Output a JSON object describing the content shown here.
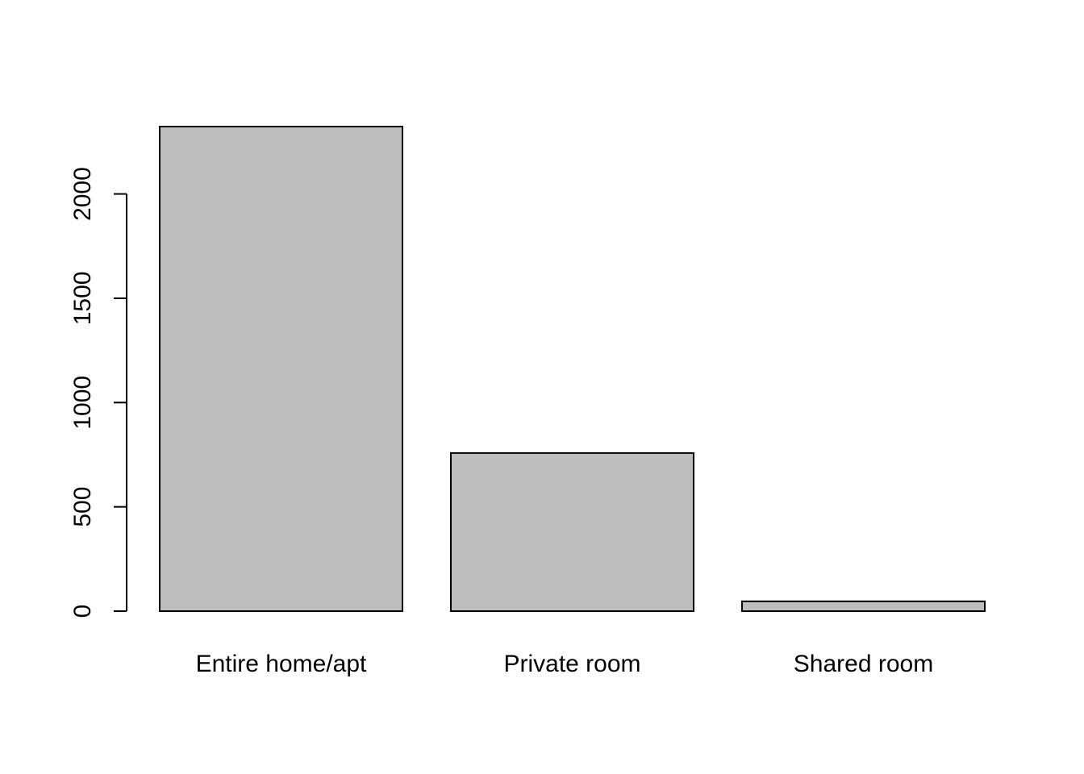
{
  "chart_data": {
    "type": "bar",
    "title": "",
    "xlabel": "",
    "ylabel": "",
    "categories": [
      "Entire home/apt",
      "Private room",
      "Shared room"
    ],
    "values": [
      2323,
      758,
      47
    ],
    "ylim": [
      0,
      2323
    ],
    "yticks": [
      0,
      500,
      1000,
      1500,
      2000
    ],
    "ytick_labels": [
      "0",
      "500",
      "1000",
      "1500",
      "2000"
    ],
    "grid": false,
    "legend": "none",
    "bar_fill": "#bebebe",
    "bar_stroke": "#000000"
  }
}
